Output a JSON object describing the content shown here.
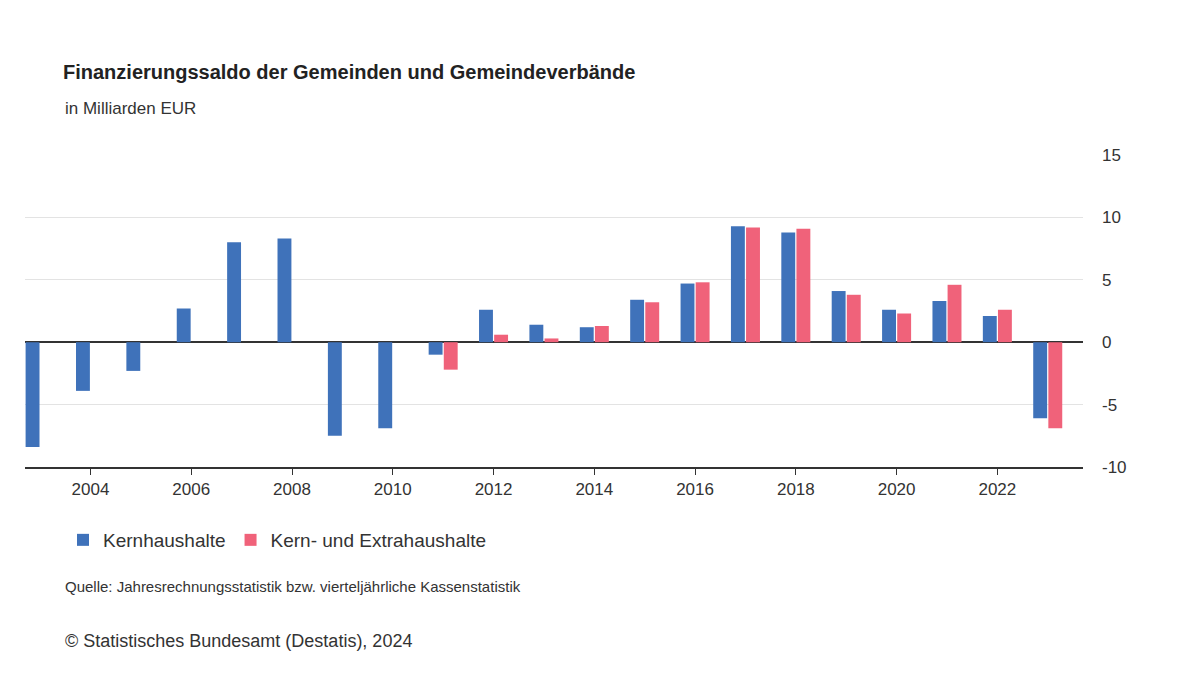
{
  "chart_data": {
    "type": "bar",
    "title": "Finanzierungssaldo der Gemeinden und Gemeindeverbände",
    "subtitle": "in Milliarden EUR",
    "x": [
      2003,
      2004,
      2005,
      2006,
      2007,
      2008,
      2009,
      2010,
      2011,
      2012,
      2013,
      2014,
      2015,
      2016,
      2017,
      2018,
      2019,
      2020,
      2021,
      2022,
      2023
    ],
    "series": [
      {
        "name": "Kernhaushalte",
        "color": "#3f72ba",
        "values": [
          -8.4,
          -3.9,
          -2.3,
          2.7,
          8.0,
          8.3,
          -7.5,
          -6.9,
          -1.0,
          2.6,
          1.4,
          1.2,
          3.4,
          4.7,
          9.3,
          8.8,
          4.1,
          2.6,
          3.3,
          2.1,
          -6.1
        ]
      },
      {
        "name": "Kern- und Extrahaushalte",
        "color": "#f0627a",
        "values": [
          null,
          null,
          null,
          null,
          null,
          null,
          null,
          null,
          -2.2,
          0.6,
          0.3,
          1.3,
          3.2,
          4.8,
          9.2,
          9.1,
          3.8,
          2.3,
          4.6,
          2.6,
          -6.9
        ]
      }
    ],
    "xlim": [
      2002.7,
      2023.7
    ],
    "xticks": [
      2004,
      2006,
      2008,
      2010,
      2012,
      2014,
      2016,
      2018,
      2020,
      2022
    ],
    "ylim": [
      -10,
      15
    ],
    "yticks": [
      -10,
      -5,
      0,
      5,
      10,
      15
    ],
    "grid": true,
    "legend": "bottom left",
    "annotations": [
      "Quelle: Jahresrechnungsstatistik bzw. vierteljährliche Kassenstatistik",
      "© Statistisches Bundesamt (Destatis), 2024"
    ]
  }
}
